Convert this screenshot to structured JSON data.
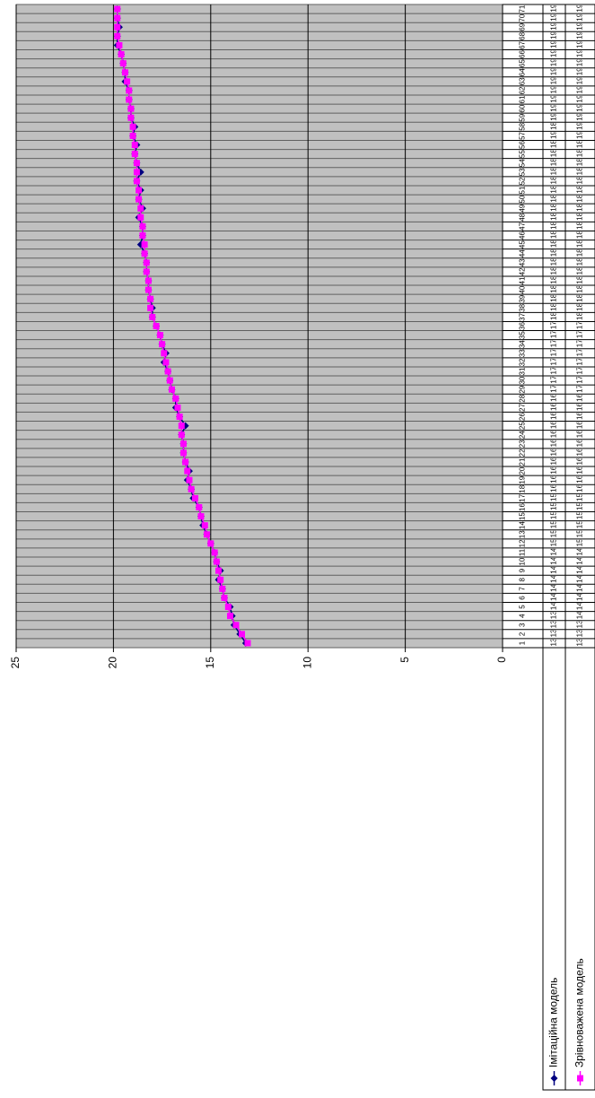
{
  "chart_data": {
    "type": "line",
    "categories": [
      "1",
      "2",
      "3",
      "4",
      "5",
      "6",
      "7",
      "8",
      "9",
      "10",
      "11",
      "12",
      "13",
      "14",
      "15",
      "16",
      "17",
      "18",
      "19",
      "20",
      "21",
      "22",
      "23",
      "24",
      "25",
      "26",
      "27",
      "28",
      "29",
      "30",
      "31",
      "32",
      "33",
      "34",
      "35",
      "36",
      "37",
      "38",
      "39",
      "40",
      "41",
      "42",
      "43",
      "44",
      "45",
      "46",
      "47",
      "48",
      "49",
      "50",
      "51",
      "52",
      "53",
      "54",
      "55",
      "56",
      "57",
      "58",
      "59",
      "60",
      "61",
      "62",
      "63",
      "64",
      "65",
      "66",
      "67",
      "68",
      "69",
      "70",
      "71"
    ],
    "series": [
      {
        "name": "Імітаційна модель",
        "color": "#000080",
        "marker": "diamond",
        "values": [
          13.2,
          13.5,
          13.8,
          13.9,
          14.0,
          14.3,
          14.4,
          14.6,
          14.5,
          14.7,
          14.8,
          15.0,
          15.2,
          15.4,
          15.5,
          15.6,
          15.9,
          16.0,
          16.2,
          16.1,
          16.3,
          16.4,
          16.4,
          16.5,
          16.3,
          16.6,
          16.8,
          16.8,
          17.0,
          17.1,
          17.2,
          17.4,
          17.3,
          17.5,
          17.6,
          17.8,
          18.0,
          18.0,
          18.1,
          18.2,
          18.2,
          18.3,
          18.3,
          18.4,
          18.6,
          18.5,
          18.5,
          18.7,
          18.5,
          18.7,
          18.6,
          18.8,
          18.6,
          18.8,
          18.9,
          18.8,
          19.0,
          18.9,
          19.1,
          19.1,
          19.2,
          19.2,
          19.4,
          19.4,
          19.5,
          19.6,
          19.8,
          19.8,
          19.7,
          19.8,
          19.8
        ]
      },
      {
        "name": "Зрівноважена модель",
        "color": "#ff00ff",
        "marker": "square",
        "values": [
          13.1,
          13.4,
          13.7,
          14.0,
          14.1,
          14.3,
          14.4,
          14.5,
          14.6,
          14.7,
          14.8,
          15.0,
          15.2,
          15.3,
          15.5,
          15.6,
          15.8,
          16.0,
          16.1,
          16.2,
          16.3,
          16.4,
          16.4,
          16.5,
          16.5,
          16.6,
          16.7,
          16.8,
          17.0,
          17.1,
          17.2,
          17.3,
          17.4,
          17.5,
          17.6,
          17.8,
          18.0,
          18.1,
          18.1,
          18.2,
          18.2,
          18.3,
          18.3,
          18.4,
          18.4,
          18.5,
          18.5,
          18.6,
          18.6,
          18.7,
          18.7,
          18.8,
          18.8,
          18.8,
          18.9,
          18.9,
          19.0,
          19.0,
          19.1,
          19.1,
          19.2,
          19.2,
          19.3,
          19.4,
          19.5,
          19.6,
          19.7,
          19.8,
          19.8,
          19.8,
          19.8
        ]
      }
    ],
    "ylim": [
      0,
      25
    ],
    "yticks": [
      0,
      5,
      10,
      15,
      20,
      25
    ],
    "grid": true,
    "data_table": true,
    "plot_background": "#c0c0c0"
  }
}
